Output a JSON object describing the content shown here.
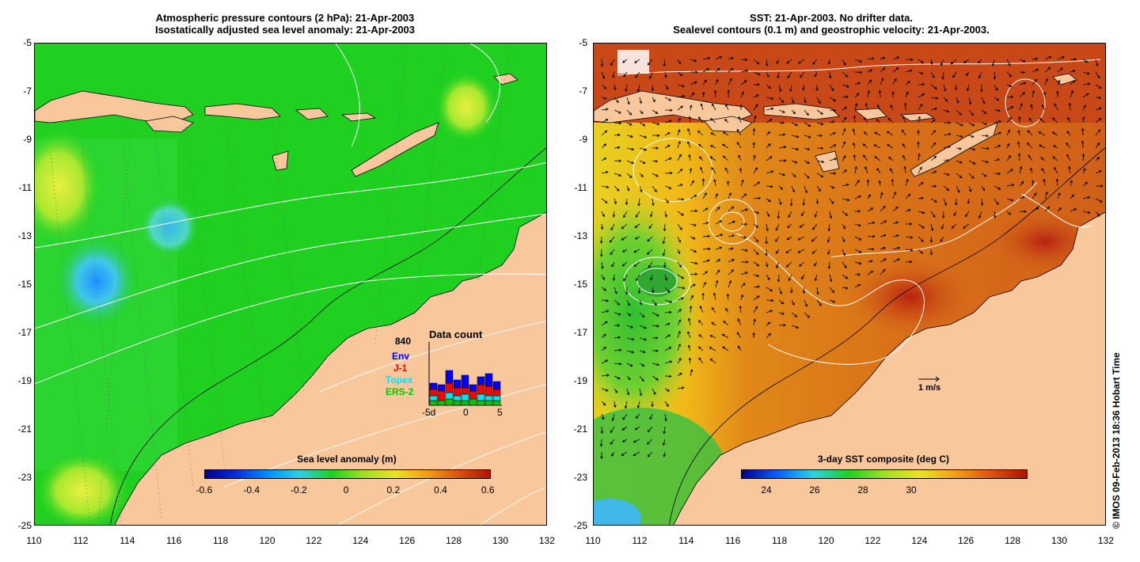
{
  "left_panel": {
    "title_line1": "Atmospheric pressure contours (2 hPa): 21-Apr-2003",
    "title_line2": "Isostatically adjusted sea level anomaly: 21-Apr-2003",
    "colorbar": {
      "label": "Sea level anomaly (m)",
      "ticks": [
        "-0.6",
        "-0.4",
        "-0.2",
        "0",
        "0.2",
        "0.4",
        "0.6"
      ]
    },
    "data_count": {
      "title": "Data count",
      "total": "840",
      "legend": [
        {
          "label": "Env",
          "color": "#0000ff"
        },
        {
          "label": "J-1",
          "color": "#ff0000"
        },
        {
          "label": "Topex",
          "color": "#00e0ff"
        },
        {
          "label": "ERS-2",
          "color": "#00c800"
        }
      ],
      "axis_labels": [
        "-5d",
        "0",
        "5"
      ],
      "bars": [
        {
          "ers2": 6,
          "topex": 6,
          "j1": 8,
          "env": 8
        },
        {
          "ers2": 6,
          "topex": 0,
          "j1": 12,
          "env": 8
        },
        {
          "ers2": 8,
          "topex": 8,
          "j1": 12,
          "env": 16
        },
        {
          "ers2": 6,
          "topex": 6,
          "j1": 10,
          "env": 10
        },
        {
          "ers2": 6,
          "topex": 8,
          "j1": 8,
          "env": 16
        },
        {
          "ers2": 8,
          "topex": 0,
          "j1": 10,
          "env": 8
        },
        {
          "ers2": 6,
          "topex": 8,
          "j1": 12,
          "env": 10
        },
        {
          "ers2": 6,
          "topex": 6,
          "j1": 12,
          "env": 16
        },
        {
          "ers2": 6,
          "topex": 6,
          "j1": 8,
          "env": 10
        }
      ]
    }
  },
  "right_panel": {
    "title_line1": "SST: 21-Apr-2003. No drifter data.",
    "title_line2": "Sealevel contours (0.1 m) and geostrophic velocity: 21-Apr-2003.",
    "colorbar": {
      "label": "3-day SST composite (deg C)",
      "ticks": [
        "24",
        "26",
        "28",
        "30"
      ]
    },
    "velocity_scale": "1 m/s"
  },
  "axes": {
    "lat_ticks": [
      "-5",
      "-7",
      "-9",
      "-11",
      "-13",
      "-15",
      "-17",
      "-19",
      "-21",
      "-23",
      "-25"
    ],
    "lon_ticks": [
      "110",
      "112",
      "114",
      "116",
      "118",
      "120",
      "122",
      "124",
      "126",
      "128",
      "130",
      "132"
    ]
  },
  "credit": "© IMOS 09-Feb-2013 18:36 Hobart Time",
  "colors": {
    "land": "#f8c89c",
    "sla_ocean": "#20d020",
    "sst_warm": "#d86a10"
  }
}
